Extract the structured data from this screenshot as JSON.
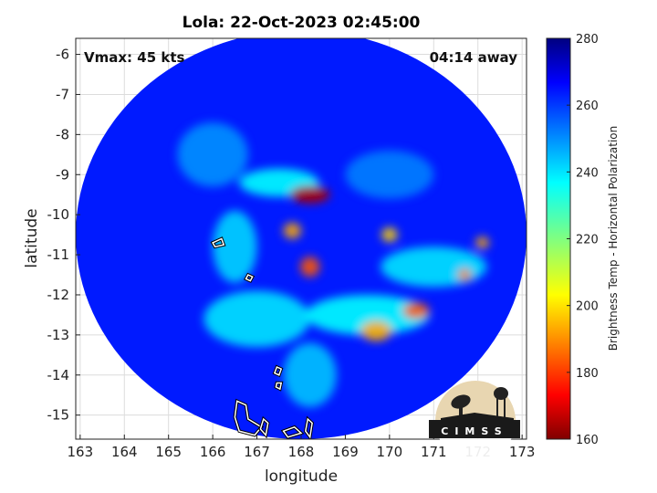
{
  "chart_data": {
    "type": "heatmap",
    "title": "Lola: 22-Oct-2023 02:45:00",
    "xlabel": "longitude",
    "ylabel": "latitude",
    "xlim": [
      162.9,
      173.1
    ],
    "ylim": [
      -15.6,
      -5.6
    ],
    "x_ticks": [
      163,
      164,
      165,
      166,
      167,
      168,
      169,
      170,
      171,
      172,
      173
    ],
    "y_ticks": [
      -6,
      -7,
      -8,
      -9,
      -10,
      -11,
      -12,
      -13,
      -14,
      -15
    ],
    "grid": true,
    "annotations": {
      "vmax": "Vmax: 45 kts",
      "time_away": "04:14 away"
    },
    "colorbar": {
      "label": "Brightness Temp - Horizontal Polarization",
      "min": 160,
      "max": 280,
      "ticks": [
        160,
        180,
        200,
        220,
        240,
        260,
        280
      ],
      "colormap": "jet"
    },
    "swath": {
      "center_lon": 168.0,
      "center_lat": -10.5,
      "radius_deg": 5.1
    },
    "features": [
      {
        "lon": 168.2,
        "lat": -9.5,
        "tb": 165,
        "sx": 0.45,
        "sy": 0.22
      },
      {
        "lon": 167.8,
        "lat": -10.4,
        "tb": 195,
        "sx": 0.2,
        "sy": 0.2
      },
      {
        "lon": 168.2,
        "lat": -11.3,
        "tb": 185,
        "sx": 0.22,
        "sy": 0.25
      },
      {
        "lon": 170.0,
        "lat": -10.5,
        "tb": 200,
        "sx": 0.18,
        "sy": 0.18
      },
      {
        "lon": 170.6,
        "lat": -12.4,
        "tb": 185,
        "sx": 0.3,
        "sy": 0.2
      },
      {
        "lon": 169.7,
        "lat": -12.9,
        "tb": 195,
        "sx": 0.35,
        "sy": 0.25
      },
      {
        "lon": 171.7,
        "lat": -11.5,
        "tb": 190,
        "sx": 0.15,
        "sy": 0.15
      },
      {
        "lon": 172.1,
        "lat": -10.7,
        "tb": 195,
        "sx": 0.15,
        "sy": 0.15
      },
      {
        "lon": 167.5,
        "lat": -9.2,
        "tb": 235,
        "sx": 0.9,
        "sy": 0.35
      },
      {
        "lon": 166.5,
        "lat": -10.8,
        "tb": 240,
        "sx": 0.5,
        "sy": 0.9
      },
      {
        "lon": 167.0,
        "lat": -12.6,
        "tb": 238,
        "sx": 1.2,
        "sy": 0.7
      },
      {
        "lon": 169.5,
        "lat": -12.5,
        "tb": 235,
        "sx": 1.4,
        "sy": 0.5
      },
      {
        "lon": 171.0,
        "lat": -11.3,
        "tb": 238,
        "sx": 1.2,
        "sy": 0.5
      },
      {
        "lon": 168.2,
        "lat": -14.0,
        "tb": 242,
        "sx": 0.6,
        "sy": 0.8
      },
      {
        "lon": 166.0,
        "lat": -8.5,
        "tb": 248,
        "sx": 0.8,
        "sy": 0.8
      },
      {
        "lon": 170.0,
        "lat": -9.0,
        "tb": 250,
        "sx": 1.0,
        "sy": 0.6
      }
    ],
    "coastlines": [
      [
        [
          166.0,
          -10.7
        ],
        [
          166.2,
          -10.6
        ],
        [
          166.25,
          -10.75
        ],
        [
          166.05,
          -10.8
        ]
      ],
      [
        [
          166.8,
          -11.5
        ],
        [
          166.9,
          -11.55
        ],
        [
          166.85,
          -11.65
        ],
        [
          166.75,
          -11.6
        ]
      ],
      [
        [
          167.45,
          -13.8
        ],
        [
          167.55,
          -13.85
        ],
        [
          167.5,
          -14.0
        ],
        [
          167.4,
          -13.95
        ]
      ],
      [
        [
          167.45,
          -14.2
        ],
        [
          167.55,
          -14.2
        ],
        [
          167.52,
          -14.35
        ],
        [
          167.43,
          -14.3
        ]
      ],
      [
        [
          166.55,
          -14.65
        ],
        [
          166.75,
          -14.75
        ],
        [
          166.8,
          -15.1
        ],
        [
          167.1,
          -15.3
        ],
        [
          166.95,
          -15.5
        ],
        [
          166.6,
          -15.4
        ],
        [
          166.5,
          -15.05
        ]
      ],
      [
        [
          167.15,
          -15.1
        ],
        [
          167.25,
          -15.2
        ],
        [
          167.2,
          -15.5
        ],
        [
          167.08,
          -15.35
        ]
      ],
      [
        [
          168.15,
          -15.1
        ],
        [
          168.25,
          -15.2
        ],
        [
          168.2,
          -15.55
        ],
        [
          168.1,
          -15.4
        ]
      ],
      [
        [
          167.6,
          -15.4
        ],
        [
          167.85,
          -15.3
        ],
        [
          168.0,
          -15.45
        ],
        [
          167.7,
          -15.55
        ]
      ]
    ]
  },
  "logo": {
    "text": "CIMSS"
  }
}
